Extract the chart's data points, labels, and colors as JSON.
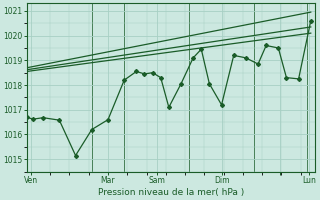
{
  "xlabel": "Pression niveau de la mer( hPa )",
  "ylim": [
    1014.5,
    1021.3
  ],
  "yticks": [
    1015,
    1016,
    1017,
    1018,
    1019,
    1020,
    1021
  ],
  "bg_color": "#cce8e0",
  "grid_color": "#a8d0c4",
  "line_color": "#1a5c28",
  "line1_x": [
    0,
    3,
    8,
    16,
    24,
    32,
    40,
    48,
    54,
    58,
    62,
    66,
    70,
    76,
    82,
    86,
    90,
    96,
    102,
    108,
    114,
    118,
    124,
    128,
    134,
    140
  ],
  "line1_y": [
    1016.7,
    1016.62,
    1016.68,
    1016.58,
    1015.15,
    1016.2,
    1016.6,
    1018.2,
    1018.55,
    1018.45,
    1018.5,
    1018.3,
    1017.1,
    1018.05,
    1019.1,
    1019.45,
    1018.05,
    1017.2,
    1019.2,
    1019.1,
    1018.85,
    1019.6,
    1019.5,
    1018.3,
    1018.25,
    1020.6
  ],
  "line2_x": [
    0,
    140
  ],
  "line2_y": [
    1018.55,
    1020.1
  ],
  "line3_x": [
    0,
    140
  ],
  "line3_y": [
    1018.62,
    1020.35
  ],
  "line4_x": [
    0,
    140
  ],
  "line4_y": [
    1018.7,
    1020.95
  ],
  "vline_x": [
    32,
    48,
    80,
    112,
    138
  ],
  "xtick_pos": [
    2,
    40,
    64,
    96,
    125,
    139
  ],
  "xtick_lab": [
    "Ven",
    "Mar",
    "Sam",
    "Dim",
    "",
    "Lun"
  ]
}
